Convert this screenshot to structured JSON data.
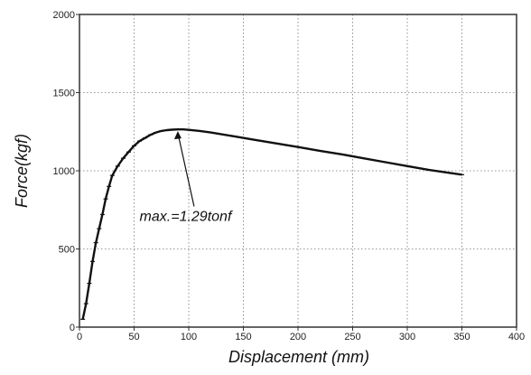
{
  "chart_data": {
    "type": "line",
    "xlabel": "Displacement (mm)",
    "ylabel": "Force(kgf)",
    "xlim": [
      0,
      400
    ],
    "ylim": [
      0,
      2000
    ],
    "x_ticks": [
      "0",
      "50",
      "100",
      "150",
      "200",
      "250",
      "300",
      "350",
      "400"
    ],
    "y_ticks": [
      "0",
      "500",
      "1000",
      "1500",
      "2000"
    ],
    "grid": true,
    "series": [
      {
        "color": "#111111",
        "x": [
          3,
          6,
          9,
          12,
          15,
          18,
          21,
          24,
          27,
          30,
          35,
          40,
          45,
          50,
          55,
          60,
          65,
          70,
          75,
          80,
          85,
          90,
          95,
          100,
          110,
          120,
          140,
          160,
          180,
          200,
          220,
          240,
          260,
          280,
          300,
          320,
          340,
          350
        ],
        "y": [
          50,
          150,
          280,
          420,
          540,
          630,
          720,
          820,
          900,
          970,
          1030,
          1080,
          1120,
          1160,
          1190,
          1210,
          1230,
          1245,
          1255,
          1260,
          1263,
          1265,
          1265,
          1262,
          1255,
          1245,
          1222,
          1198,
          1175,
          1152,
          1128,
          1105,
          1080,
          1055,
          1030,
          1005,
          985,
          975
        ]
      }
    ],
    "annotations": [
      {
        "text": "max.=1.29tonf",
        "x": 55,
        "y": 680,
        "target_x": 90,
        "target_y": 1265
      }
    ]
  }
}
